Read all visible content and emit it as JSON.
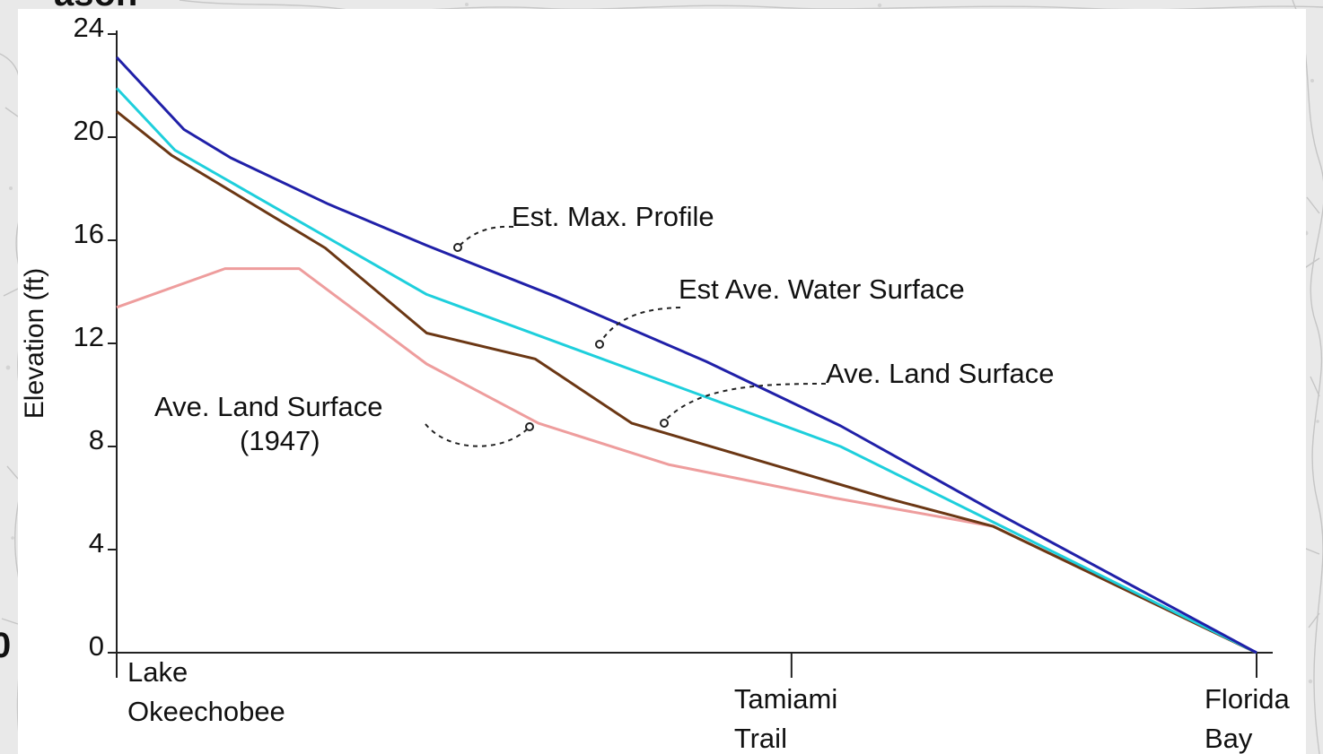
{
  "fragments": {
    "top_left": "ason",
    "left_edge": "0"
  },
  "chart_data": {
    "type": "line",
    "ylabel": "Elevation (ft)",
    "xlabel": "",
    "ylim": [
      0,
      24
    ],
    "yticks": [
      0,
      4,
      8,
      12,
      16,
      20,
      24
    ],
    "xlim": [
      0,
      100
    ],
    "categories": [
      {
        "x": 0,
        "lines": [
          "Lake",
          "Okeechobee"
        ],
        "tick": false
      },
      {
        "x": 59.2,
        "lines": [
          "Tamiami",
          "Trail"
        ],
        "tick": true
      },
      {
        "x": 100,
        "lines": [
          "Florida",
          "Bay"
        ],
        "tick": true
      }
    ],
    "series": [
      {
        "name": "Ave. Land Surface (1947)",
        "color": "#ee9d9d",
        "points": [
          [
            0,
            13.4
          ],
          [
            9.5,
            14.9
          ],
          [
            16,
            14.9
          ],
          [
            27.2,
            11.2
          ],
          [
            37,
            8.9
          ],
          [
            48.4,
            7.3
          ],
          [
            63,
            6.0
          ],
          [
            76.9,
            4.9
          ],
          [
            100,
            0
          ]
        ]
      },
      {
        "name": "Ave. Land Surface",
        "color": "#6b3714",
        "points": [
          [
            0,
            21.0
          ],
          [
            4.8,
            19.3
          ],
          [
            18.3,
            15.7
          ],
          [
            27.2,
            12.4
          ],
          [
            36.7,
            11.4
          ],
          [
            45.2,
            8.9
          ],
          [
            67.5,
            6.0
          ],
          [
            76.9,
            4.9
          ],
          [
            100,
            0
          ]
        ]
      },
      {
        "name": "Est Ave. Water Surface",
        "color": "#1ecfdc",
        "points": [
          [
            0,
            21.9
          ],
          [
            5.1,
            19.5
          ],
          [
            27.2,
            13.9
          ],
          [
            63.5,
            8.0
          ],
          [
            100,
            0
          ]
        ]
      },
      {
        "name": "Est. Max. Profile",
        "color": "#2020a8",
        "points": [
          [
            0,
            23.1
          ],
          [
            5.9,
            20.3
          ],
          [
            10,
            19.2
          ],
          [
            18.6,
            17.4
          ],
          [
            27.2,
            15.8
          ],
          [
            38.6,
            13.8
          ],
          [
            51.7,
            11.3
          ],
          [
            63.5,
            8.8
          ],
          [
            76.9,
            5.5
          ],
          [
            100,
            0
          ]
        ]
      }
    ],
    "annotations": [
      {
        "lines": [
          "Est. Max. Profile"
        ],
        "target_series": "Est. Max. Profile"
      },
      {
        "lines": [
          "Est Ave. Water Surface"
        ],
        "target_series": "Est Ave. Water Surface"
      },
      {
        "lines": [
          "Ave. Land Surface"
        ],
        "target_series": "Ave. Land Surface"
      },
      {
        "lines": [
          "Ave. Land Surface",
          "(1947)"
        ],
        "target_series": "Ave. Land Surface (1947)"
      }
    ]
  }
}
